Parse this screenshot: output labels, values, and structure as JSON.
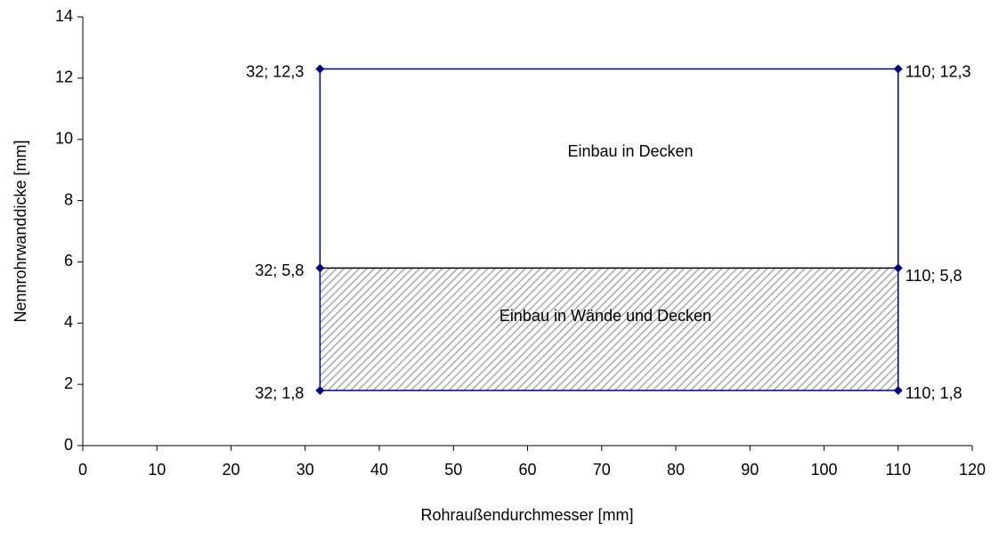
{
  "chart_data": {
    "type": "scatter",
    "xlabel": "Rohraußendurchmesser [mm]",
    "ylabel": "Nennrohrwanddicke [mm]",
    "xlim": [
      0,
      120
    ],
    "xticks": [
      0,
      10,
      20,
      30,
      40,
      50,
      60,
      70,
      80,
      90,
      100,
      110,
      120
    ],
    "ylim": [
      0,
      14
    ],
    "yticks": [
      0,
      2,
      4,
      6,
      8,
      10,
      12,
      14
    ],
    "grid": false,
    "series": [
      {
        "color": "#000080",
        "x": [
          32,
          110
        ],
        "values": [
          12.3,
          12.3
        ],
        "value_labels": [
          "32; 12,3",
          "110; 12,3"
        ]
      },
      {
        "color": "#000080",
        "x": [
          32,
          110
        ],
        "values": [
          5.8,
          5.8
        ],
        "value_labels": [
          "32; 5,8",
          "110; 5,8"
        ]
      },
      {
        "color": "#000080",
        "x": [
          32,
          110
        ],
        "values": [
          1.8,
          1.8
        ],
        "value_labels": [
          "32; 1,8",
          "110; 1,8"
        ]
      }
    ],
    "annotations": [
      "Einbau in Decken",
      "Einbau in Wände und Decken"
    ]
  }
}
